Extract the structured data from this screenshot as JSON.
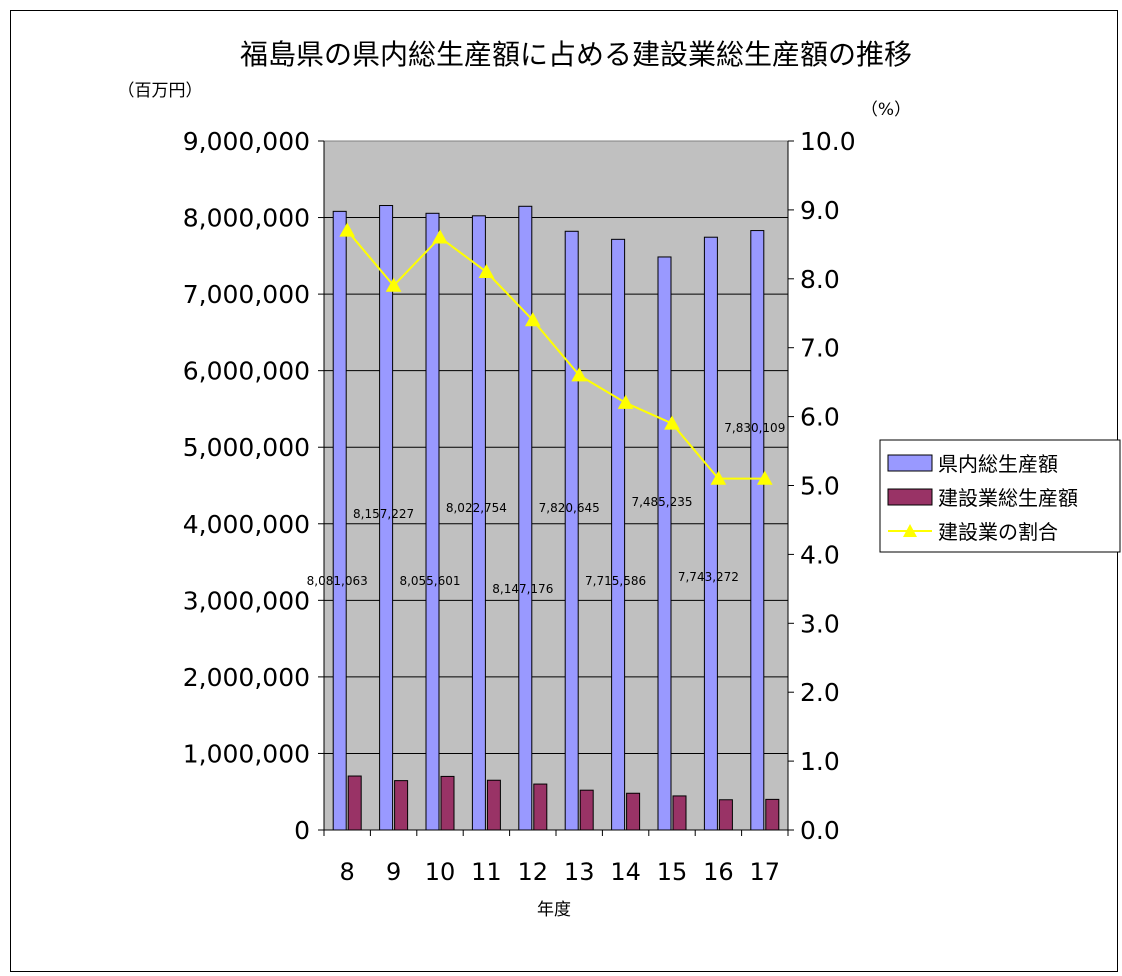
{
  "chart_data": {
    "type": "bar",
    "title": "福島県の県内総生産額に占める建設業総生産額の推移",
    "ylabel": "（百万円）",
    "y2label": "（%）",
    "xlabel": "年度",
    "categories": [
      "8",
      "9",
      "10",
      "11",
      "12",
      "13",
      "14",
      "15",
      "16",
      "17"
    ],
    "ylim": [
      0,
      9000000
    ],
    "y2lim": [
      0,
      10
    ],
    "yticks": [
      "0",
      "1,000,000",
      "2,000,000",
      "3,000,000",
      "4,000,000",
      "5,000,000",
      "6,000,000",
      "7,000,000",
      "8,000,000",
      "9,000,000"
    ],
    "y2ticks": [
      "0.0",
      "1.0",
      "2.0",
      "3.0",
      "4.0",
      "5.0",
      "6.0",
      "7.0",
      "8.0",
      "9.0",
      "10.0"
    ],
    "grid": true,
    "legend_position": "right",
    "series": [
      {
        "name": "県内総生産額",
        "type": "bar",
        "axis": "left",
        "color": "#9999ff",
        "values": [
          8081063,
          8157227,
          8055601,
          8022754,
          8147176,
          7820645,
          7715586,
          7485235,
          7743272,
          7830109
        ],
        "labels": [
          "8,081,063",
          "8,157,227",
          "8,055,601",
          "8,022,754",
          "8,147,176",
          "7,820,645",
          "7,715,586",
          "7,485,235",
          "7,743,272",
          "7,830,109"
        ]
      },
      {
        "name": "建設業総生産額",
        "type": "bar",
        "axis": "left",
        "color": "#993366",
        "values": [
          705000,
          645000,
          700000,
          650000,
          600000,
          520000,
          480000,
          445000,
          395000,
          400000
        ]
      },
      {
        "name": "建設業の割合",
        "type": "line",
        "axis": "right",
        "color": "#ffff00",
        "marker": "triangle",
        "values": [
          8.7,
          7.9,
          8.6,
          8.1,
          7.4,
          6.6,
          6.2,
          5.9,
          5.1,
          5.1
        ]
      }
    ],
    "plot_background": "#c0c0c0"
  }
}
